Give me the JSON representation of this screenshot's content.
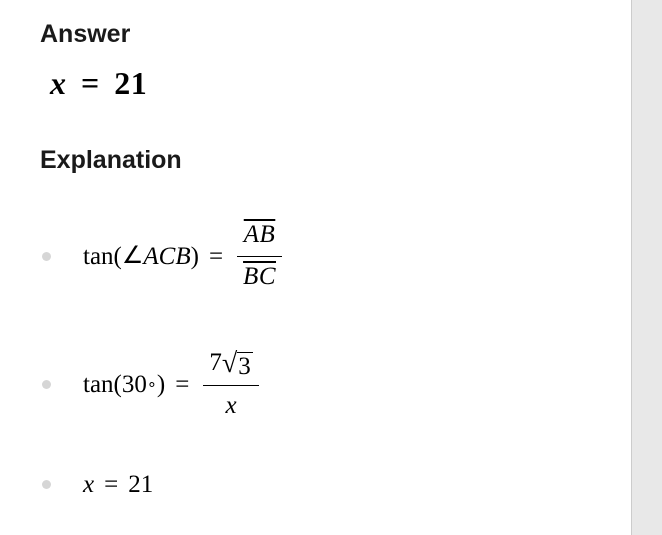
{
  "headings": {
    "answer": "Answer",
    "explanation": "Explanation"
  },
  "answer": {
    "lhs_var": "x",
    "eq": "=",
    "rhs": "21"
  },
  "steps": {
    "s1": {
      "fn": "tan",
      "lparen": "(",
      "angle_sym": "∠",
      "angle_letters": "ACB",
      "rparen": ")",
      "eq": "=",
      "num_top": "AB",
      "num_bot": "BC"
    },
    "s2": {
      "fn": "tan",
      "lparen": "(",
      "angle_val": "30",
      "deg": "∘",
      "rparen": ")",
      "eq": "=",
      "coef": "7",
      "radicand": "3",
      "denom": "x"
    },
    "s3": {
      "var": "x",
      "eq": "=",
      "val": "21"
    }
  },
  "colors": {
    "page_bg": "#ffffff",
    "body_bg": "#e8e8e8",
    "bullet": "#d6d6d6",
    "heading": "#1a1a1a",
    "math": "#000000"
  },
  "typography": {
    "heading_fontsize": 25,
    "answer_fontsize": 32,
    "math_fontsize": 25,
    "heading_weight": 700
  }
}
